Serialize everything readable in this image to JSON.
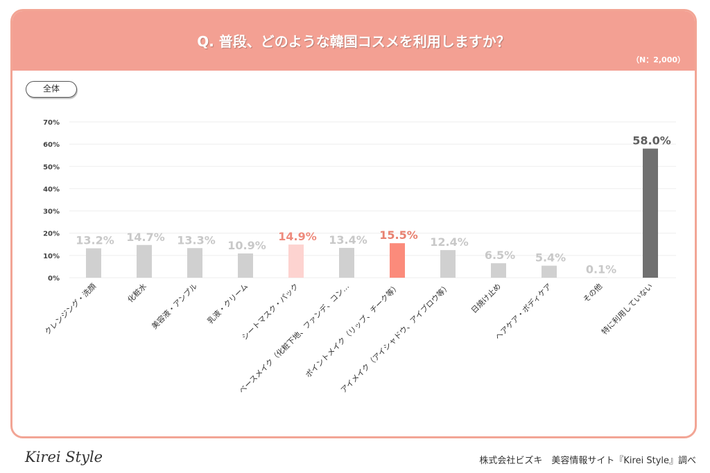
{
  "header": {
    "title": "Q. 普段、どのような韓国コスメを利用しますか？",
    "sample": "（N：2,000）"
  },
  "segment_label": "全体",
  "footer": {
    "logo": "Kirei Style",
    "credit": "株式会社ビズキ　美容情報サイト『Kirei Style』調べ"
  },
  "chart_data": {
    "type": "bar",
    "categories": [
      "クレンジング・洗顔",
      "化粧水",
      "美容液・アンプル",
      "乳液・クリーム",
      "シートマスク・パック",
      "ベースメイク（化粧下地、ファンデ、コン…",
      "ポイントメイク（リップ、チーク等）",
      "アイメイク（アイシャドウ、アイブロウ等）",
      "日焼け止め",
      "ヘアケア・ボディケア",
      "その他",
      "特に利用していない"
    ],
    "values": [
      13.2,
      14.7,
      13.3,
      10.9,
      14.9,
      13.4,
      15.5,
      12.4,
      6.5,
      5.4,
      0.1,
      58.0
    ],
    "data_labels": [
      "13.2%",
      "14.7%",
      "13.3%",
      "10.9%",
      "14.9%",
      "13.4%",
      "15.5%",
      "12.4%",
      "6.5%",
      "5.4%",
      "0.1%",
      "58.0%"
    ],
    "bar_colors": [
      "#d0d0d0",
      "#d0d0d0",
      "#d0d0d0",
      "#d0d0d0",
      "#fdd3d0",
      "#d0d0d0",
      "#fb8b7b",
      "#d0d0d0",
      "#d0d0d0",
      "#d0d0d0",
      "#d0d0d0",
      "#707070"
    ],
    "label_colors": [
      "#c8c8c8",
      "#c8c8c8",
      "#c8c8c8",
      "#c8c8c8",
      "#ee8a7c",
      "#c8c8c8",
      "#e8806f",
      "#c8c8c8",
      "#c8c8c8",
      "#c8c8c8",
      "#c8c8c8",
      "#606060"
    ],
    "yticks": [
      "0%",
      "10%",
      "20%",
      "30%",
      "40%",
      "50%",
      "60%",
      "70%"
    ],
    "ylim": [
      0,
      70
    ],
    "grid": true
  }
}
